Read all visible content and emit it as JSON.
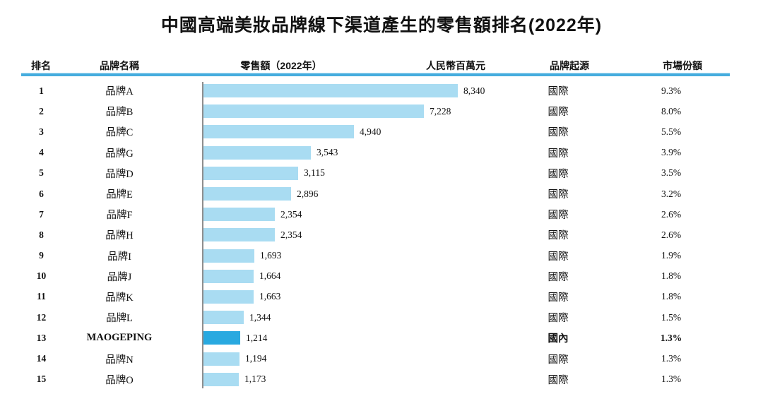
{
  "page": {
    "title": "中國高端美妝品牌線下渠道產生的零售額排名(2022年)"
  },
  "table": {
    "headers": {
      "rank": "排名",
      "brand": "品牌名稱",
      "retail": "零售額（2022年）",
      "unit": "人民幣百萬元",
      "origin": "品牌起源",
      "share": "市場份額"
    },
    "rows": [
      {
        "rank": "1",
        "brand": "品牌A",
        "value": 8340,
        "value_label": "8,340",
        "origin": "國際",
        "share": "9.3%",
        "highlight": false
      },
      {
        "rank": "2",
        "brand": "品牌B",
        "value": 7228,
        "value_label": "7,228",
        "origin": "國際",
        "share": "8.0%",
        "highlight": false
      },
      {
        "rank": "3",
        "brand": "品牌C",
        "value": 4940,
        "value_label": "4,940",
        "origin": "國際",
        "share": "5.5%",
        "highlight": false
      },
      {
        "rank": "4",
        "brand": "品牌G",
        "value": 3543,
        "value_label": "3,543",
        "origin": "國際",
        "share": "3.9%",
        "highlight": false
      },
      {
        "rank": "5",
        "brand": "品牌D",
        "value": 3115,
        "value_label": "3,115",
        "origin": "國際",
        "share": "3.5%",
        "highlight": false
      },
      {
        "rank": "6",
        "brand": "品牌E",
        "value": 2896,
        "value_label": "2,896",
        "origin": "國際",
        "share": "3.2%",
        "highlight": false
      },
      {
        "rank": "7",
        "brand": "品牌F",
        "value": 2354,
        "value_label": "2,354",
        "origin": "國際",
        "share": "2.6%",
        "highlight": false
      },
      {
        "rank": "8",
        "brand": "品牌H",
        "value": 2354,
        "value_label": "2,354",
        "origin": "國際",
        "share": "2.6%",
        "highlight": false
      },
      {
        "rank": "9",
        "brand": "品牌I",
        "value": 1693,
        "value_label": "1,693",
        "origin": "國際",
        "share": "1.9%",
        "highlight": false
      },
      {
        "rank": "10",
        "brand": "品牌J",
        "value": 1664,
        "value_label": "1,664",
        "origin": "國際",
        "share": "1.8%",
        "highlight": false
      },
      {
        "rank": "11",
        "brand": "品牌K",
        "value": 1663,
        "value_label": "1,663",
        "origin": "國際",
        "share": "1.8%",
        "highlight": false
      },
      {
        "rank": "12",
        "brand": "品牌L",
        "value": 1344,
        "value_label": "1,344",
        "origin": "國際",
        "share": "1.5%",
        "highlight": false
      },
      {
        "rank": "13",
        "brand": "MAOGEPING",
        "value": 1214,
        "value_label": "1,214",
        "origin": "國內",
        "share": "1.3%",
        "highlight": true
      },
      {
        "rank": "14",
        "brand": "品牌N",
        "value": 1194,
        "value_label": "1,194",
        "origin": "國際",
        "share": "1.3%",
        "highlight": false
      },
      {
        "rank": "15",
        "brand": "品牌O",
        "value": 1173,
        "value_label": "1,173",
        "origin": "國際",
        "share": "1.3%",
        "highlight": false
      }
    ]
  },
  "chart_data": {
    "type": "bar",
    "orientation": "horizontal",
    "title": "中國高端美妝品牌線下渠道產生的零售額排名(2022年)",
    "series_label": "零售額（2022年）",
    "xlabel": "人民幣百萬元",
    "categories": [
      "品牌A",
      "品牌B",
      "品牌C",
      "品牌G",
      "品牌D",
      "品牌E",
      "品牌F",
      "品牌H",
      "品牌I",
      "品牌J",
      "品牌K",
      "品牌L",
      "MAOGEPING",
      "品牌N",
      "品牌O"
    ],
    "values": [
      8340,
      7228,
      4940,
      3543,
      3115,
      2896,
      2354,
      2354,
      1693,
      1664,
      1663,
      1344,
      1214,
      1194,
      1173
    ],
    "market_share": [
      "9.3%",
      "8.0%",
      "5.5%",
      "3.9%",
      "3.5%",
      "3.2%",
      "2.6%",
      "2.6%",
      "1.9%",
      "1.8%",
      "1.8%",
      "1.5%",
      "1.3%",
      "1.3%",
      "1.3%"
    ],
    "brand_origin": [
      "國際",
      "國際",
      "國際",
      "國際",
      "國際",
      "國際",
      "國際",
      "國際",
      "國際",
      "國際",
      "國際",
      "國際",
      "國內",
      "國際",
      "國際"
    ],
    "highlight_category": "MAOGEPING",
    "xlim": [
      0,
      10350
    ],
    "grid": false,
    "data_labels": true
  },
  "colors": {
    "bar": "#A9DCF2",
    "bar_highlight": "#29A9E0",
    "header_rule": "#45ACDE",
    "axis_line": "#8E8E8E",
    "text": "#111111"
  }
}
